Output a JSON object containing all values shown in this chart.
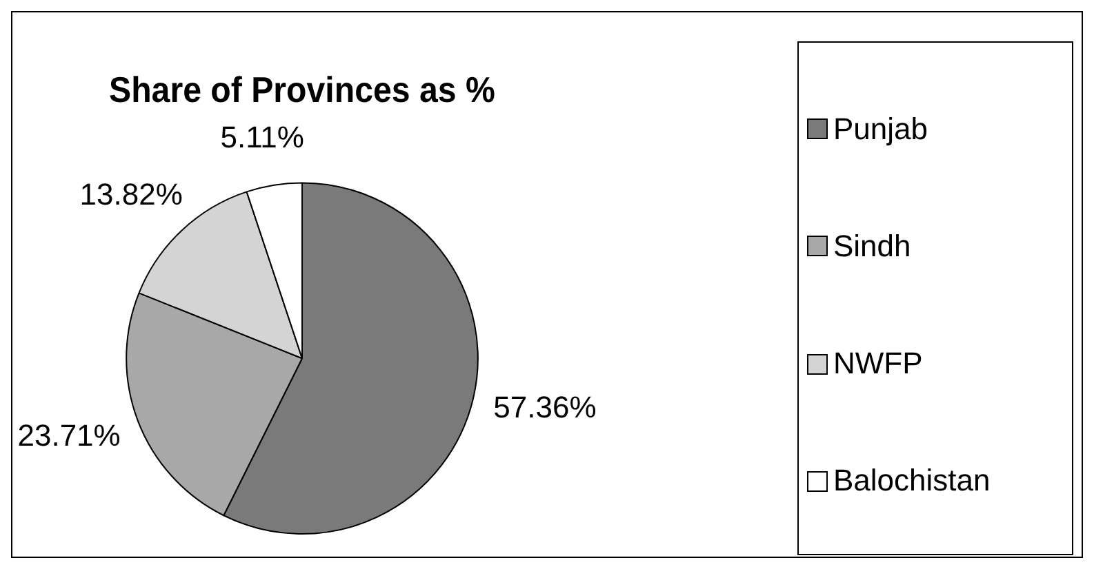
{
  "chart_data": {
    "type": "pie",
    "title": "Share of Provinces as %",
    "categories": [
      "Punjab",
      "Sindh",
      "NWFP",
      "Balochistan"
    ],
    "values": [
      57.36,
      23.71,
      13.82,
      5.11
    ],
    "value_labels": [
      "57.36%",
      "23.71%",
      "13.82%",
      "5.11%"
    ],
    "colors": [
      "#7a7a7a",
      "#a8a8a8",
      "#d4d4d4",
      "#ffffff"
    ],
    "legend": "right"
  }
}
